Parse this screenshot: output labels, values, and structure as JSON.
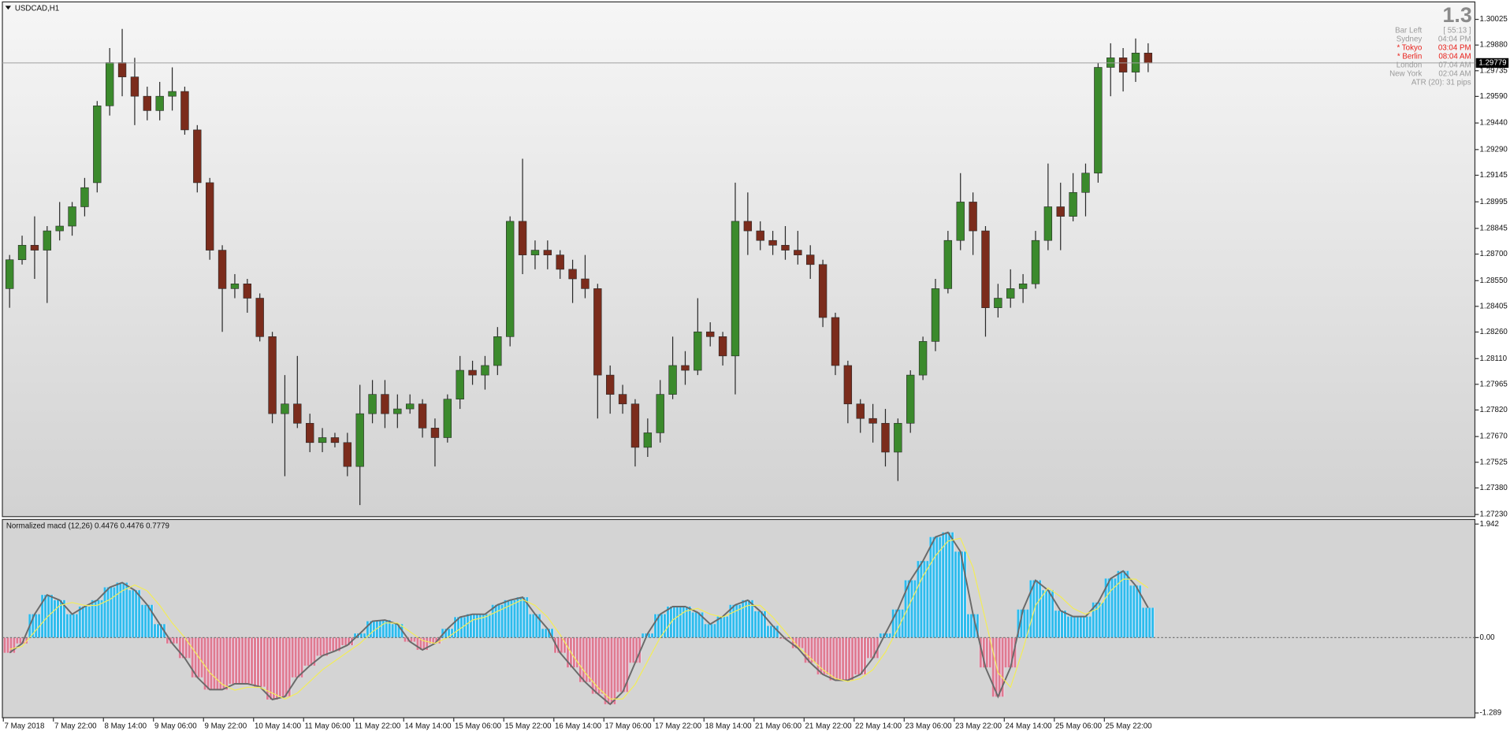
{
  "chart_data": [
    {
      "type": "candlestick",
      "title": "USDCAD,H1",
      "up_color": "#3b8a2c",
      "down_color": "#7b2c1c",
      "wick_color": "#2a2a2a",
      "ylim": [
        1.27218,
        1.30118
      ],
      "yticks": [
        1.30025,
        {
          "value": 1.2988,
          "label": "1.29880"
        },
        1.29735,
        {
          "value": 1.2959,
          "label": "1.29590"
        },
        {
          "value": 1.2944,
          "label": "1.29440"
        },
        {
          "value": 1.2929,
          "label": "1.29290"
        },
        1.29145,
        1.28995,
        1.28845,
        {
          "value": 1.287,
          "label": "1.28700"
        },
        {
          "value": 1.2855,
          "label": "1.28550"
        },
        1.28405,
        {
          "value": 1.2826,
          "label": "1.28260"
        },
        {
          "value": 1.2811,
          "label": "1.28110"
        },
        1.27965,
        {
          "value": 1.2782,
          "label": "1.27820"
        },
        {
          "value": 1.2767,
          "label": "1.27670"
        },
        1.27525,
        {
          "value": 1.2738,
          "label": "1.27380"
        },
        {
          "value": 1.2723,
          "label": "1.27230"
        }
      ],
      "current_price": 1.29779,
      "info_big": "1.3",
      "info": [
        {
          "label": "Bar Left",
          "value": "[ 55:13 ]",
          "color": "#9a9a9a"
        },
        {
          "label": "Sydney",
          "value": "04:04 PM",
          "color": "#9a9a9a"
        },
        {
          "label": "* Tokyo",
          "value": "03:04 PM",
          "color": "#e8201a"
        },
        {
          "label": "* Berlin",
          "value": "08:04 AM",
          "color": "#e8201a"
        },
        {
          "label": "London",
          "value": "07:04 AM",
          "color": "#9a9a9a"
        },
        {
          "label": "New York",
          "value": "02:04 AM",
          "color": "#9a9a9a"
        }
      ],
      "atr": "ATR (20): 31 pips",
      "ohlc": [
        [
          1.28505,
          1.28695,
          1.28397,
          1.28668
        ],
        [
          1.28668,
          1.28804,
          1.28641,
          1.2875
        ],
        [
          1.2875,
          1.28913,
          1.2856,
          1.28722
        ],
        [
          1.28722,
          1.28858,
          1.28424,
          1.28831
        ],
        [
          1.28831,
          1.28994,
          1.28777,
          1.28858
        ],
        [
          1.28858,
          1.28994,
          1.28804,
          1.28967
        ],
        [
          1.28967,
          1.2913,
          1.28913,
          1.29075
        ],
        [
          1.29103,
          1.29564,
          1.29048,
          1.29537
        ],
        [
          1.29537,
          1.29863,
          1.29482,
          1.29781
        ],
        [
          1.29781,
          1.29971,
          1.29591,
          1.297
        ],
        [
          1.297,
          1.29808,
          1.29428,
          1.29591
        ],
        [
          1.29591,
          1.29645,
          1.29455,
          1.2951
        ],
        [
          1.2951,
          1.29672,
          1.29455,
          1.29591
        ],
        [
          1.29591,
          1.29754,
          1.2951,
          1.29618
        ],
        [
          1.29618,
          1.29645,
          1.29374,
          1.29401
        ],
        [
          1.29401,
          1.29428,
          1.29048,
          1.29103
        ],
        [
          1.29103,
          1.2913,
          1.28668,
          1.28722
        ],
        [
          1.28722,
          1.2875,
          1.28261,
          1.28505
        ],
        [
          1.28505,
          1.28587,
          1.28451,
          1.28532
        ],
        [
          1.28532,
          1.2856,
          1.28369,
          1.28451
        ],
        [
          1.28451,
          1.28478,
          1.28207,
          1.28234
        ],
        [
          1.28234,
          1.28261,
          1.27745,
          1.27799
        ],
        [
          1.27799,
          1.28017,
          1.27446,
          1.27854
        ],
        [
          1.27854,
          1.28125,
          1.27718,
          1.27745
        ],
        [
          1.27745,
          1.27799,
          1.27582,
          1.27636
        ],
        [
          1.27636,
          1.27718,
          1.27582,
          1.27664
        ],
        [
          1.27664,
          1.27691,
          1.27609,
          1.27636
        ],
        [
          1.27636,
          1.27691,
          1.27446,
          1.27501
        ],
        [
          1.27501,
          1.27962,
          1.27283,
          1.27799
        ],
        [
          1.27799,
          1.27989,
          1.27745,
          1.27908
        ],
        [
          1.27908,
          1.27989,
          1.27718,
          1.27799
        ],
        [
          1.27799,
          1.27908,
          1.27718,
          1.27826
        ],
        [
          1.27826,
          1.27908,
          1.27799,
          1.27854
        ],
        [
          1.27854,
          1.27881,
          1.27664,
          1.27718
        ],
        [
          1.27718,
          1.27772,
          1.27501,
          1.27664
        ],
        [
          1.27664,
          1.27908,
          1.27636,
          1.27881
        ],
        [
          1.27881,
          1.28125,
          1.27826,
          1.28044
        ],
        [
          1.28044,
          1.28098,
          1.27962,
          1.28017
        ],
        [
          1.28017,
          1.28125,
          1.27935,
          1.28071
        ],
        [
          1.28071,
          1.28288,
          1.28017,
          1.28234
        ],
        [
          1.28234,
          1.28913,
          1.28179,
          1.28885
        ],
        [
          1.28885,
          1.29238,
          1.28587,
          1.28695
        ],
        [
          1.28695,
          1.28777,
          1.28614,
          1.28722
        ],
        [
          1.28722,
          1.28777,
          1.28614,
          1.28695
        ],
        [
          1.28695,
          1.28722,
          1.2856,
          1.28614
        ],
        [
          1.28614,
          1.28668,
          1.28424,
          1.2856
        ],
        [
          1.2856,
          1.28695,
          1.28451,
          1.28505
        ],
        [
          1.28505,
          1.28532,
          1.27772,
          1.28017
        ],
        [
          1.28017,
          1.28071,
          1.27799,
          1.27908
        ],
        [
          1.27908,
          1.27962,
          1.27799,
          1.27854
        ],
        [
          1.27854,
          1.27881,
          1.27501,
          1.27609
        ],
        [
          1.27609,
          1.27772,
          1.27555,
          1.27691
        ],
        [
          1.27691,
          1.27989,
          1.27636,
          1.27908
        ],
        [
          1.27908,
          1.28234,
          1.27881,
          1.28071
        ],
        [
          1.28071,
          1.28152,
          1.27962,
          1.28044
        ],
        [
          1.28044,
          1.28451,
          1.28017,
          1.28261
        ],
        [
          1.28261,
          1.28315,
          1.28179,
          1.28234
        ],
        [
          1.28234,
          1.28261,
          1.28071,
          1.28125
        ],
        [
          1.28125,
          1.29103,
          1.27908,
          1.28885
        ],
        [
          1.28885,
          1.29048,
          1.28695,
          1.28831
        ],
        [
          1.28831,
          1.28885,
          1.28722,
          1.28777
        ],
        [
          1.28777,
          1.28831,
          1.28695,
          1.2875
        ],
        [
          1.2875,
          1.28858,
          1.28668,
          1.28722
        ],
        [
          1.28722,
          1.28831,
          1.28641,
          1.28695
        ],
        [
          1.28695,
          1.2875,
          1.2856,
          1.28641
        ],
        [
          1.28641,
          1.28668,
          1.28288,
          1.28342
        ],
        [
          1.28342,
          1.28369,
          1.28017,
          1.28071
        ],
        [
          1.28071,
          1.28098,
          1.27745,
          1.27854
        ],
        [
          1.27854,
          1.27881,
          1.27691,
          1.27772
        ],
        [
          1.27772,
          1.27854,
          1.27636,
          1.27745
        ],
        [
          1.27745,
          1.27826,
          1.27501,
          1.27582
        ],
        [
          1.27582,
          1.27772,
          1.27419,
          1.27745
        ],
        [
          1.27745,
          1.28044,
          1.27691,
          1.28017
        ],
        [
          1.28017,
          1.28234,
          1.27989,
          1.28207
        ],
        [
          1.28207,
          1.2856,
          1.28152,
          1.28505
        ],
        [
          1.28505,
          1.28831,
          1.28478,
          1.28777
        ],
        [
          1.28777,
          1.29157,
          1.28722,
          1.28994
        ],
        [
          1.28994,
          1.29048,
          1.28695,
          1.28831
        ],
        [
          1.28831,
          1.28858,
          1.28234,
          1.28397
        ],
        [
          1.28397,
          1.28532,
          1.28342,
          1.28451
        ],
        [
          1.28451,
          1.28614,
          1.28397,
          1.28505
        ],
        [
          1.28505,
          1.28587,
          1.28424,
          1.28532
        ],
        [
          1.28532,
          1.28831,
          1.28505,
          1.28777
        ],
        [
          1.28777,
          1.29211,
          1.28722,
          1.28967
        ],
        [
          1.28967,
          1.29103,
          1.28722,
          1.28913
        ],
        [
          1.28913,
          1.29157,
          1.28885,
          1.29048
        ],
        [
          1.29048,
          1.29211,
          1.28913,
          1.29157
        ],
        [
          1.29157,
          1.29781,
          1.29103,
          1.29754
        ],
        [
          1.29754,
          1.2989,
          1.29591,
          1.29808
        ],
        [
          1.29808,
          1.29863,
          1.29618,
          1.29727
        ],
        [
          1.29727,
          1.29917,
          1.29672,
          1.29835
        ],
        [
          1.29835,
          1.2989,
          1.29727,
          1.29779
        ]
      ]
    },
    {
      "type": "macd",
      "title": "Normalized macd (12,26) 0.4476 0.4476 0.7779",
      "pos_color": "#2cbcec",
      "neg_color": "#e07a90",
      "outline_color": "#6a6a6a",
      "signal_color": "#f2ec5a",
      "ylim": [
        -1.37,
        2.02
      ],
      "yticks": [
        1.942,
        {
          "value": 0,
          "label": "0.00"
        },
        -1.289
      ],
      "categories": [
        "7 May 2018",
        null,
        null,
        null,
        "7 May 22:00",
        null,
        null,
        null,
        "8 May 14:00",
        null,
        null,
        null,
        "9 May 06:00",
        null,
        null,
        null,
        "9 May 22:00",
        null,
        null,
        null,
        "10 May 14:00",
        null,
        null,
        null,
        "11 May 06:00",
        null,
        null,
        null,
        "11 May 22:00",
        null,
        null,
        null,
        "14 May 14:00",
        null,
        null,
        null,
        "15 May 06:00",
        null,
        null,
        null,
        "15 May 22:00",
        null,
        null,
        null,
        "16 May 14:00",
        null,
        null,
        null,
        "17 May 06:00",
        null,
        null,
        null,
        "17 May 22:00",
        null,
        null,
        null,
        "18 May 14:00",
        null,
        null,
        null,
        "21 May 06:00",
        null,
        null,
        null,
        "21 May 22:00",
        null,
        null,
        null,
        "22 May 14:00",
        null,
        null,
        null,
        "23 May 06:00",
        null,
        null,
        null,
        "23 May 22:00",
        null,
        null,
        null,
        "24 May 14:00",
        null,
        null,
        null,
        "25 May 06:00",
        null,
        null,
        null,
        "25 May 22:00",
        null,
        null,
        null
      ],
      "values": [
        -0.26,
        -0.1,
        0.4,
        0.73,
        0.64,
        0.4,
        0.53,
        0.64,
        0.86,
        0.94,
        0.81,
        0.56,
        0.23,
        -0.1,
        -0.35,
        -0.68,
        -0.89,
        -0.89,
        -0.79,
        -0.79,
        -0.84,
        -1.06,
        -1.01,
        -0.68,
        -0.48,
        -0.31,
        -0.23,
        -0.13,
        0.07,
        0.28,
        0.3,
        0.23,
        -0.07,
        -0.21,
        -0.1,
        0.15,
        0.35,
        0.4,
        0.4,
        0.56,
        0.64,
        0.69,
        0.4,
        0.15,
        -0.26,
        -0.51,
        -0.76,
        -0.96,
        -1.14,
        -0.93,
        -0.43,
        0.07,
        0.4,
        0.53,
        0.53,
        0.43,
        0.23,
        0.36,
        0.56,
        0.64,
        0.45,
        0.2,
        -0.02,
        -0.18,
        -0.43,
        -0.63,
        -0.73,
        -0.73,
        -0.63,
        -0.35,
        0.07,
        0.48,
        0.98,
        1.31,
        1.72,
        1.8,
        1.47,
        0.4,
        -0.51,
        -1.01,
        -0.51,
        0.48,
        0.98,
        0.81,
        0.46,
        0.36,
        0.36,
        0.6,
        1.01,
        1.14,
        0.89,
        0.51
      ],
      "signal": [
        -0.2,
        -0.15,
        0.1,
        0.35,
        0.55,
        0.6,
        0.55,
        0.55,
        0.65,
        0.8,
        0.9,
        0.8,
        0.55,
        0.25,
        0.0,
        -0.3,
        -0.6,
        -0.8,
        -0.9,
        -0.85,
        -0.85,
        -0.95,
        -1.05,
        -0.95,
        -0.75,
        -0.55,
        -0.4,
        -0.25,
        -0.1,
        0.1,
        0.25,
        0.25,
        0.1,
        -0.05,
        -0.1,
        0.0,
        0.15,
        0.3,
        0.35,
        0.45,
        0.55,
        0.65,
        0.55,
        0.35,
        0.05,
        -0.3,
        -0.6,
        -0.85,
        -1.05,
        -1.05,
        -0.8,
        -0.4,
        0.0,
        0.3,
        0.45,
        0.5,
        0.4,
        0.35,
        0.45,
        0.55,
        0.55,
        0.35,
        0.1,
        -0.15,
        -0.35,
        -0.55,
        -0.7,
        -0.75,
        -0.7,
        -0.55,
        -0.25,
        0.15,
        0.6,
        1.05,
        1.4,
        1.65,
        1.7,
        1.2,
        0.3,
        -0.6,
        -0.85,
        -0.2,
        0.55,
        0.85,
        0.7,
        0.5,
        0.4,
        0.5,
        0.8,
        1.0,
        1.0,
        0.85
      ]
    }
  ]
}
